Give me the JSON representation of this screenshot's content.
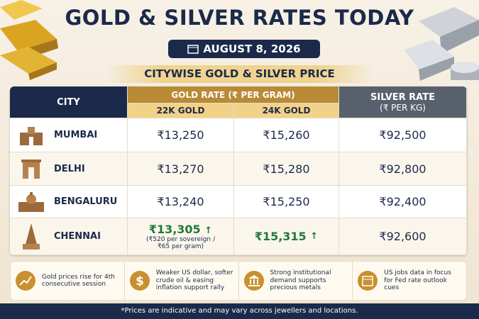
{
  "header": {
    "title": "GOLD & SILVER RATES TODAY",
    "date": "AUGUST 8, 2026",
    "subtitle": "CITYWISE GOLD & SILVER PRICE"
  },
  "table": {
    "columns": {
      "city": "CITY",
      "gold": "GOLD RATE (₹ PER GRAM)",
      "gold_22k": "22K GOLD",
      "gold_24k": "24K GOLD",
      "silver": "SILVER RATE",
      "silver_unit": "(₹ PER KG)"
    },
    "rows": [
      {
        "city": "MUMBAI",
        "gold_22k": "₹13,250",
        "gold_24k": "₹15,260",
        "silver": "₹92,500"
      },
      {
        "city": "DELHI",
        "gold_22k": "₹13,270",
        "gold_24k": "₹15,280",
        "silver": "₹92,800"
      },
      {
        "city": "BENGALURU",
        "gold_22k": "₹13,240",
        "gold_24k": "₹15,250",
        "silver": "₹92,400"
      },
      {
        "city": "CHENNAI",
        "gold_22k": "₹13,305",
        "gold_22k_trend": "↑",
        "gold_22k_note": "(₹520 per sovereign / ₹65 per gram)",
        "gold_24k": "₹15,315",
        "gold_24k_trend": "↑",
        "silver": "₹92,600"
      }
    ]
  },
  "highlights": [
    "Gold prices rise for 4th consecutive session",
    "Weaker US dollar, softer crude oil & easing inflation support rally",
    "Strong institutional demand supports precious metals",
    "US jobs data in focus for Fed rate outlook cues"
  ],
  "footer_note": "*Prices are indicative and may vary across jewellers and locations."
}
